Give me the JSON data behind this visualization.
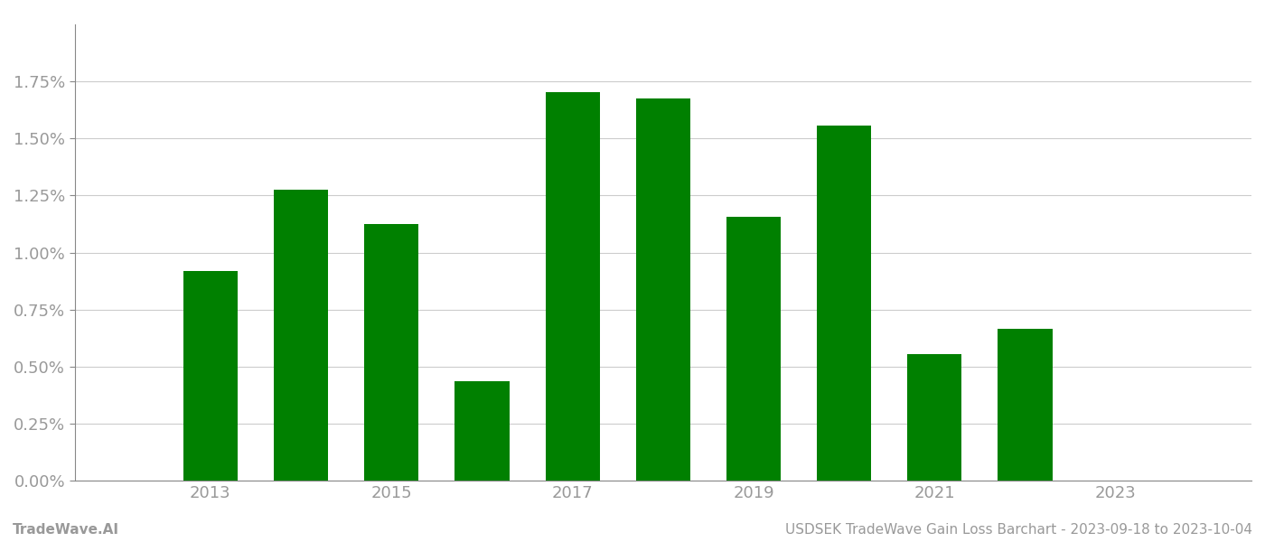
{
  "years": [
    2013,
    2014,
    2015,
    2016,
    2017,
    2018,
    2019,
    2020,
    2021,
    2022,
    2023
  ],
  "values": [
    0.0092,
    0.01275,
    0.01125,
    0.00435,
    0.01705,
    0.01675,
    0.01155,
    0.01555,
    0.00555,
    0.00665,
    null
  ],
  "bar_color": "#008000",
  "background_color": "#ffffff",
  "grid_color": "#cccccc",
  "axis_color": "#888888",
  "tick_label_color": "#999999",
  "ylim": [
    0,
    0.02
  ],
  "yticks": [
    0.0,
    0.0025,
    0.005,
    0.0075,
    0.01,
    0.0125,
    0.015,
    0.0175
  ],
  "ytick_labels": [
    "0.00%",
    "0.25%",
    "0.50%",
    "0.75%",
    "1.00%",
    "1.25%",
    "1.50%",
    "1.75%"
  ],
  "xtick_labels": [
    "2013",
    "2015",
    "2017",
    "2019",
    "2021",
    "2023"
  ],
  "xtick_positions": [
    2013,
    2015,
    2017,
    2019,
    2021,
    2023
  ],
  "footer_left": "TradeWave.AI",
  "footer_right": "USDSEK TradeWave Gain Loss Barchart - 2023-09-18 to 2023-10-04",
  "bar_width": 0.6,
  "xlim_left": 2011.5,
  "xlim_right": 2024.5,
  "figsize": [
    14.0,
    6.0
  ],
  "dpi": 100,
  "font_size_yticks": 13,
  "font_size_xticks": 13,
  "font_size_footer": 11
}
